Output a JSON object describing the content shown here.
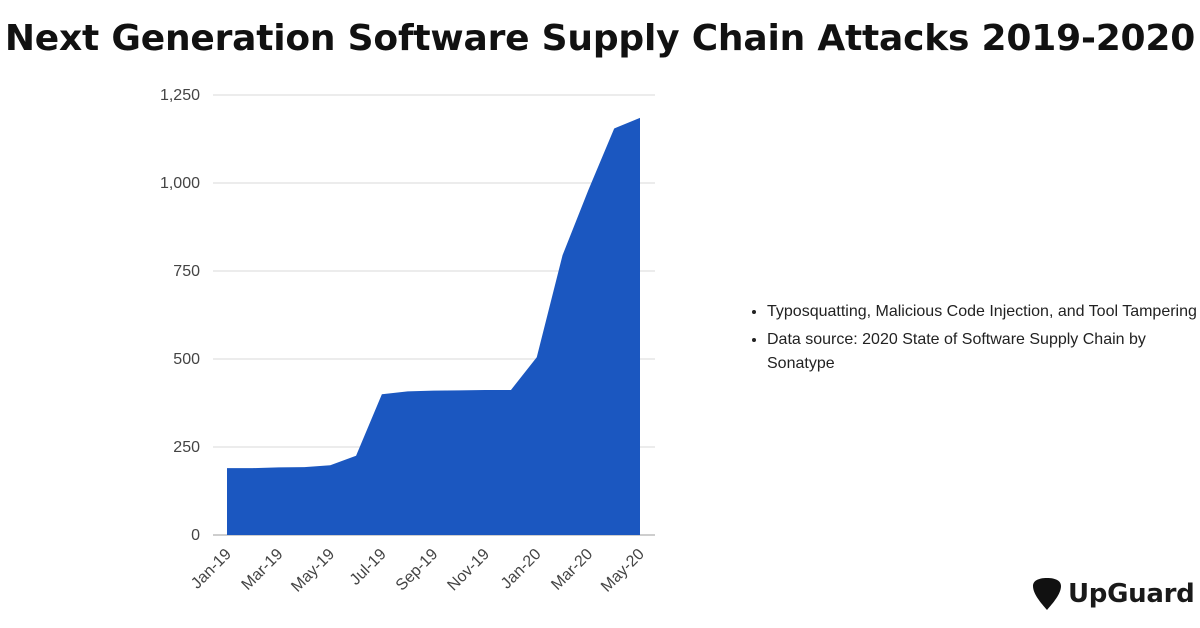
{
  "title": "Next Generation Software Supply Chain Attacks 2019-2020",
  "notes": [
    "Typosquatting, Malicious Code Injection, and Tool Tampering",
    "Data source: 2020 State of Software Supply Chain by Sonatype"
  ],
  "brand": {
    "name": "UpGuard",
    "icon": "guitar-pick-icon"
  },
  "colors": {
    "area": "#1b57c0",
    "grid": "#d9d9d9",
    "text": "#444444"
  },
  "chart_data": {
    "type": "area",
    "title": "Next Generation Software Supply Chain Attacks 2019-2020",
    "xlabel": "",
    "ylabel": "",
    "ylim": [
      0,
      1250
    ],
    "yticks": [
      0,
      250,
      500,
      750,
      1000,
      1250
    ],
    "ytick_labels": [
      "0",
      "250",
      "500",
      "750",
      "1,000",
      "1,250"
    ],
    "categories": [
      "Jan-19",
      "Feb-19",
      "Mar-19",
      "Apr-19",
      "May-19",
      "Jun-19",
      "Jul-19",
      "Aug-19",
      "Sep-19",
      "Oct-19",
      "Nov-19",
      "Dec-19",
      "Jan-20",
      "Feb-20",
      "Mar-20",
      "Apr-20",
      "May-20"
    ],
    "xtick_labels": [
      "Jan-19",
      "Mar-19",
      "May-19",
      "Jul-19",
      "Sep-19",
      "Nov-19",
      "Jan-20",
      "Mar-20",
      "May-20"
    ],
    "series": [
      {
        "name": "Attacks",
        "values": [
          190,
          190,
          192,
          193,
          198,
          225,
          400,
          408,
          410,
          411,
          412,
          412,
          505,
          795,
          980,
          1155,
          1185
        ]
      }
    ],
    "grid": true,
    "legend": "none"
  }
}
